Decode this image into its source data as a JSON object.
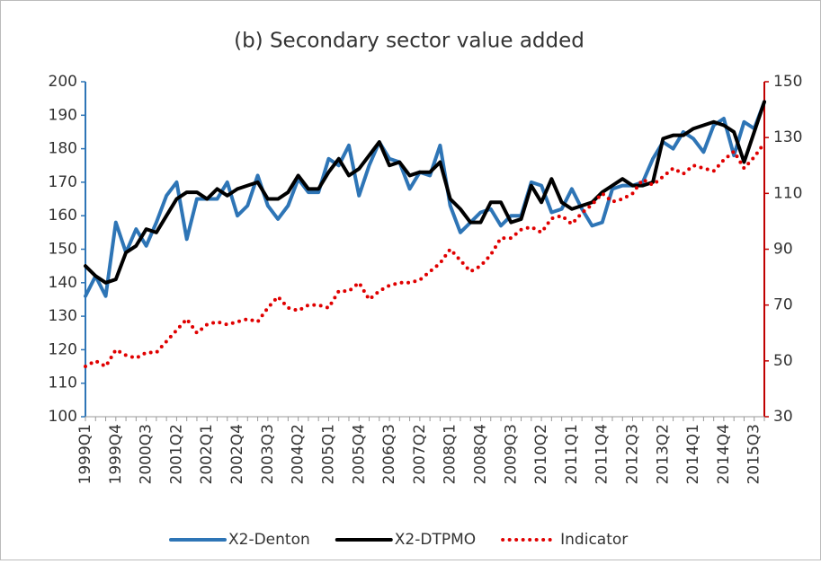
{
  "chart_data": {
    "type": "line",
    "title": "(b) Secondary sector value added",
    "categories": [
      "1999Q1",
      null,
      null,
      "1999Q4",
      null,
      null,
      "2000Q3",
      null,
      null,
      "2001Q2",
      null,
      null,
      "2002Q1",
      null,
      null,
      "2002Q4",
      null,
      null,
      "2003Q3",
      null,
      null,
      "2004Q2",
      null,
      null,
      "2005Q1",
      null,
      null,
      "2005Q4",
      null,
      null,
      "2006Q3",
      null,
      null,
      "2007Q2",
      null,
      null,
      "2008Q1",
      null,
      null,
      "2008Q4",
      null,
      null,
      "2009Q3",
      null,
      null,
      "2010Q2",
      null,
      null,
      "2011Q1",
      null,
      null,
      "2011Q4",
      null,
      null,
      "2012Q3",
      null,
      null,
      "2013Q2",
      null,
      null,
      "2014Q1",
      null,
      null,
      "2014Q4",
      null,
      null,
      "2015Q3",
      null
    ],
    "series": [
      {
        "name": "X2-Denton",
        "color": "#2e75b6",
        "values": [
          136,
          142,
          136,
          158,
          149,
          156,
          151,
          158,
          166,
          170,
          153,
          165,
          165,
          165,
          170,
          160,
          163,
          172,
          163,
          159,
          163,
          171,
          167,
          167,
          177,
          175,
          181,
          166,
          175,
          182,
          177,
          176,
          168,
          173,
          172,
          181,
          163,
          155,
          158,
          161,
          162,
          157,
          160,
          160,
          170,
          169,
          161,
          162,
          168,
          162,
          157,
          158,
          168,
          169,
          169,
          170,
          177,
          182,
          180,
          185,
          183,
          179,
          187,
          189,
          178,
          188,
          186,
          194
        ]
      },
      {
        "name": "X2-DTPMO",
        "color": "#000000",
        "values": [
          145,
          142,
          140,
          141,
          149,
          151,
          156,
          155,
          160,
          165,
          167,
          167,
          165,
          168,
          166,
          168,
          169,
          170,
          165,
          165,
          167,
          172,
          168,
          168,
          173,
          177,
          172,
          174,
          178,
          182,
          175,
          176,
          172,
          173,
          173,
          176,
          165,
          162,
          158,
          158,
          164,
          164,
          158,
          159,
          169,
          164,
          171,
          164,
          162,
          163,
          164,
          167,
          169,
          171,
          169,
          169,
          170,
          183,
          184,
          184,
          186,
          187,
          188,
          187,
          185,
          176,
          185,
          194
        ]
      },
      {
        "name": "Indicator",
        "color": "#e00000",
        "axis": "y2",
        "values": [
          48,
          50,
          48,
          54,
          52,
          51,
          53,
          53,
          57,
          61,
          65,
          60,
          63,
          64,
          63,
          64,
          65,
          64,
          69,
          73,
          69,
          68,
          70,
          70,
          69,
          75,
          75,
          78,
          72,
          75,
          77,
          78,
          78,
          79,
          82,
          85,
          90,
          86,
          82,
          84,
          88,
          94,
          94,
          97,
          98,
          96,
          101,
          102,
          99,
          103,
          106,
          110,
          107,
          108,
          110,
          115,
          113,
          116,
          119,
          117,
          120,
          119,
          118,
          122,
          125,
          119,
          123,
          128
        ]
      }
    ],
    "ylim": [
      100,
      200
    ],
    "yticks": [
      100,
      110,
      120,
      130,
      140,
      150,
      160,
      170,
      180,
      190,
      200
    ],
    "y2lim": [
      30,
      150
    ],
    "y2ticks": [
      30,
      50,
      70,
      90,
      110,
      130,
      150
    ],
    "legend": "bottom"
  }
}
